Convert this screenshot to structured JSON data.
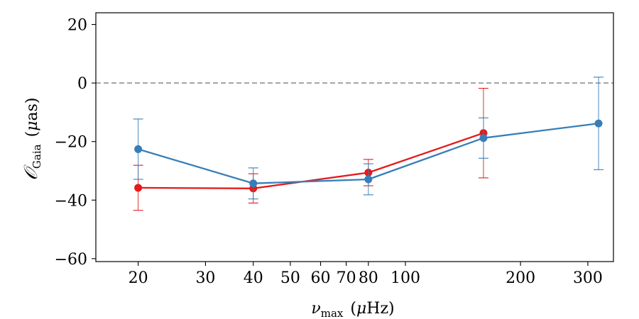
{
  "chart_data": {
    "type": "line",
    "title": "",
    "xlabel": "ν_max (μHz)",
    "xlabel_parts": {
      "symbol": "ν",
      "subscript": "max",
      "unit_open": "(",
      "unit_mu": "μ",
      "unit_rest": "Hz)"
    },
    "ylabel": "O_Gaia (μas)",
    "ylabel_parts": {
      "symbol": "𝒪",
      "subscript": "Gaia",
      "unit_open": "(",
      "unit_mu": "μ",
      "unit_rest": "as)"
    },
    "xscale": "log",
    "xlim": [
      15.5,
      350
    ],
    "ylim": [
      -61,
      24
    ],
    "x_ticks": [
      20,
      30,
      40,
      50,
      60,
      70,
      80,
      100,
      200,
      300
    ],
    "x_tick_labels": [
      "20",
      "30",
      "40",
      "50",
      "60",
      "70",
      "80",
      "100",
      "200",
      "300"
    ],
    "y_ticks": [
      -60,
      -40,
      -20,
      0,
      20
    ],
    "y_tick_labels": [
      "−60",
      "−40",
      "−20",
      "0",
      "20"
    ],
    "reference_line": {
      "y": 0,
      "style": "dashed",
      "color": "#999999"
    },
    "legend": "none",
    "grid": false,
    "series": [
      {
        "name": "red",
        "color": "#e41a1c",
        "points": [
          {
            "x": 20,
            "y": -35.8,
            "err": 7.7
          },
          {
            "x": 40,
            "y": -36.0,
            "err": 5.0
          },
          {
            "x": 80,
            "y": -30.6,
            "err": 4.5
          },
          {
            "x": 160,
            "y": -17.1,
            "err": 15.3
          }
        ]
      },
      {
        "name": "blue",
        "color": "#377eb8",
        "points": [
          {
            "x": 20,
            "y": -22.6,
            "err": 10.3
          },
          {
            "x": 40,
            "y": -34.3,
            "err": 5.3
          },
          {
            "x": 80,
            "y": -32.9,
            "err": 5.3
          },
          {
            "x": 160,
            "y": -18.8,
            "err": 6.9
          },
          {
            "x": 320,
            "y": -13.8,
            "err": 15.8
          }
        ]
      }
    ]
  }
}
